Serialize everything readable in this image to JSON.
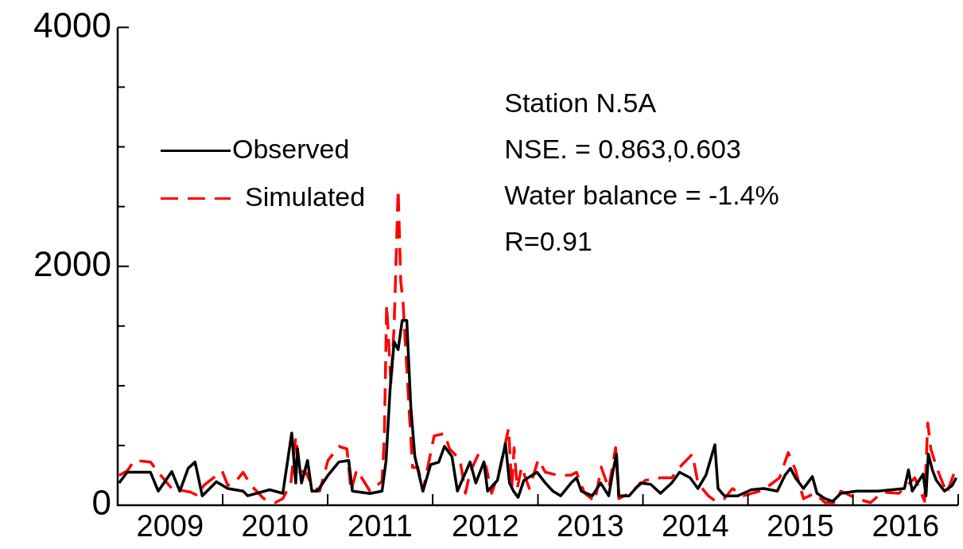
{
  "chart_data": {
    "type": "line",
    "xlim": [
      "2009-01-01",
      "2017-01-01"
    ],
    "xticks": [
      {
        "value": "2009-07-02",
        "label": "2009"
      },
      {
        "value": "2010-01-01",
        "label": null
      },
      {
        "value": "2010-07-02",
        "label": "2010"
      },
      {
        "value": "2011-01-01",
        "label": null
      },
      {
        "value": "2011-07-02",
        "label": "2011"
      },
      {
        "value": "2012-01-01",
        "label": null
      },
      {
        "value": "2012-07-02",
        "label": "2012"
      },
      {
        "value": "2013-01-01",
        "label": null
      },
      {
        "value": "2013-07-02",
        "label": "2013"
      },
      {
        "value": "2014-01-01",
        "label": null
      },
      {
        "value": "2014-07-02",
        "label": "2014"
      },
      {
        "value": "2015-01-01",
        "label": null
      },
      {
        "value": "2015-07-02",
        "label": "2015"
      },
      {
        "value": "2016-01-01",
        "label": null
      },
      {
        "value": "2016-07-02",
        "label": "2016"
      },
      {
        "value": "2017-01-01",
        "label": null
      }
    ],
    "ylim": [
      0,
      4000
    ],
    "yticks": [
      0,
      {
        "value": 500,
        "label": null
      },
      {
        "value": 1000,
        "label": null
      },
      {
        "value": 1500,
        "label": null
      },
      2000,
      {
        "value": 2500,
        "label": null
      },
      {
        "value": 3000,
        "label": null
      },
      {
        "value": 3500,
        "label": null
      },
      4000
    ],
    "grid": false,
    "legend": "top left",
    "annotations": [
      "Station N.5A",
      "NSE. = 0.863,0.603",
      "Water balance = -1.4%",
      "R=0.91"
    ],
    "series": [
      {
        "name": "Observed",
        "color": "#000000",
        "line_style": "solid",
        "x": [
          "2009-01-06",
          "2009-02-03",
          "2009-04-25",
          "2009-05-22",
          "2009-07-08",
          "2009-08-05",
          "2009-09-03",
          "2009-09-27",
          "2009-10-22",
          "2009-12-10",
          "2010-01-19",
          "2010-03-13",
          "2010-03-29",
          "2010-06-13",
          "2010-07-29",
          "2010-08-29",
          "2010-09-12",
          "2010-09-18",
          "2010-10-02",
          "2010-10-23",
          "2010-11-07",
          "2010-11-26",
          "2011-01-02",
          "2011-02-09",
          "2011-03-15",
          "2011-03-28",
          "2011-05-28",
          "2011-07-09",
          "2011-07-23",
          "2011-08-06",
          "2011-08-20",
          "2011-09-03",
          "2011-09-17",
          "2011-10-03",
          "2011-10-17",
          "2011-10-31",
          "2011-11-28",
          "2011-12-25",
          "2012-01-22",
          "2012-02-11",
          "2012-03-08",
          "2012-03-27",
          "2012-04-24",
          "2012-05-10",
          "2012-05-30",
          "2012-06-27",
          "2012-07-10",
          "2012-08-13",
          "2012-09-10",
          "2012-09-24",
          "2012-10-08",
          "2012-10-24",
          "2012-11-13",
          "2012-12-29",
          "2013-01-27",
          "2013-02-22",
          "2013-03-21",
          "2013-04-26",
          "2013-05-15",
          "2013-06-01",
          "2013-07-09",
          "2013-08-07",
          "2013-09-04",
          "2013-09-18",
          "2013-10-01",
          "2013-10-09",
          "2013-11-14",
          "2013-12-23",
          "2014-01-28",
          "2014-03-03",
          "2014-04-11",
          "2014-05-08",
          "2014-06-14",
          "2014-07-11",
          "2014-08-08",
          "2014-09-08",
          "2014-09-19",
          "2014-10-11",
          "2014-11-27",
          "2015-01-13",
          "2015-02-25",
          "2015-04-13",
          "2015-05-10",
          "2015-05-29",
          "2015-06-15",
          "2015-07-13",
          "2015-08-13",
          "2015-08-29",
          "2015-09-26",
          "2015-10-23",
          "2015-11-20",
          "2016-01-15",
          "2016-03-28",
          "2016-06-28",
          "2016-07-12",
          "2016-07-25",
          "2016-09-01",
          "2016-09-11",
          "2016-09-19",
          "2016-10-03",
          "2016-10-17",
          "2016-11-14",
          "2016-12-11",
          "2016-12-25"
        ],
        "values": [
          186,
          276,
          276,
          118,
          282,
          118,
          309,
          362,
          79,
          197,
          140,
          118,
          79,
          130,
          100,
          605,
          186,
          474,
          186,
          375,
          118,
          118,
          250,
          362,
          375,
          118,
          98,
          118,
          375,
          974,
          1368,
          1303,
          1546,
          1546,
          822,
          408,
          118,
          340,
          360,
          493,
          408,
          118,
          272,
          362,
          186,
          362,
          118,
          208,
          515,
          186,
          118,
          66,
          208,
          276,
          186,
          118,
          79,
          186,
          230,
          118,
          79,
          186,
          79,
          276,
          428,
          79,
          79,
          186,
          175,
          100,
          186,
          276,
          230,
          140,
          252,
          506,
          140,
          79,
          79,
          130,
          140,
          118,
          252,
          309,
          230,
          140,
          240,
          100,
          55,
          33,
          100,
          118,
          118,
          140,
          296,
          118,
          260,
          79,
          428,
          296,
          208,
          118,
          165,
          230
        ]
      },
      {
        "name": "Simulated",
        "color": "#ff0000",
        "line_style": "dashed",
        "x": [
          "2009-01-06",
          "2009-02-03",
          "2009-02-28",
          "2009-04-25",
          "2009-05-22",
          "2009-07-08",
          "2009-09-11",
          "2009-10-08",
          "2009-10-27",
          "2009-12-30",
          "2010-01-19",
          "2010-02-15",
          "2010-03-13",
          "2010-04-10",
          "2010-05-24",
          "2010-07-02",
          "2010-07-29",
          "2010-08-26",
          "2010-09-12",
          "2010-09-26",
          "2010-10-15",
          "2010-11-07",
          "2010-12-04",
          "2011-01-02",
          "2011-02-09",
          "2011-03-09",
          "2011-03-23",
          "2011-04-12",
          "2011-05-28",
          "2011-07-09",
          "2011-07-17",
          "2011-07-25",
          "2011-08-09",
          "2011-08-20",
          "2011-09-03",
          "2011-09-12",
          "2011-09-20",
          "2011-10-09",
          "2011-10-23",
          "2011-11-11",
          "2011-11-28",
          "2012-01-06",
          "2012-02-11",
          "2012-02-29",
          "2012-04-05",
          "2012-04-24",
          "2012-05-10",
          "2012-06-08",
          "2012-07-05",
          "2012-07-24",
          "2012-08-21",
          "2012-09-21",
          "2012-10-02",
          "2012-10-10",
          "2012-10-21",
          "2012-11-05",
          "2012-12-02",
          "2013-01-02",
          "2013-01-27",
          "2013-03-10",
          "2013-04-26",
          "2013-05-15",
          "2013-06-12",
          "2013-07-18",
          "2013-08-09",
          "2013-09-04",
          "2013-09-28",
          "2013-10-09",
          "2013-11-14",
          "2014-01-09",
          "2014-03-03",
          "2014-04-11",
          "2014-05-17",
          "2014-06-22",
          "2014-07-11",
          "2014-08-16",
          "2014-09-11",
          "2014-10-11",
          "2014-11-08",
          "2014-12-16",
          "2015-02-10",
          "2015-03-16",
          "2015-04-21",
          "2015-05-21",
          "2015-06-15",
          "2015-07-13",
          "2015-08-21",
          "2015-09-26",
          "2015-11-02",
          "2015-11-20",
          "2016-01-15",
          "2016-03-02",
          "2016-04-13",
          "2016-06-09",
          "2016-08-03",
          "2016-09-06",
          "2016-09-17",
          "2016-09-28",
          "2016-10-17",
          "2016-11-22",
          "2016-12-19",
          "2016-12-28"
        ],
        "values": [
          250,
          287,
          375,
          362,
          276,
          140,
          110,
          79,
          165,
          287,
          165,
          197,
          276,
          165,
          55,
          22,
          55,
          186,
          572,
          276,
          287,
          165,
          118,
          375,
          493,
          471,
          118,
          296,
          118,
          200,
          580,
          1678,
          1020,
          1500,
          2645,
          1875,
          1700,
          888,
          316,
          316,
          118,
          580,
          600,
          471,
          382,
          100,
          276,
          428,
          320,
          100,
          296,
          645,
          140,
          482,
          140,
          320,
          140,
          382,
          276,
          252,
          252,
          276,
          100,
          33,
          320,
          140,
          482,
          55,
          100,
          208,
          230,
          230,
          340,
          428,
          186,
          79,
          33,
          55,
          140,
          79,
          118,
          165,
          230,
          441,
          296,
          55,
          100,
          22,
          22,
          118,
          55,
          22,
          110,
          100,
          230,
          33,
          690,
          470,
          320,
          100,
          276,
          252
        ]
      }
    ]
  }
}
